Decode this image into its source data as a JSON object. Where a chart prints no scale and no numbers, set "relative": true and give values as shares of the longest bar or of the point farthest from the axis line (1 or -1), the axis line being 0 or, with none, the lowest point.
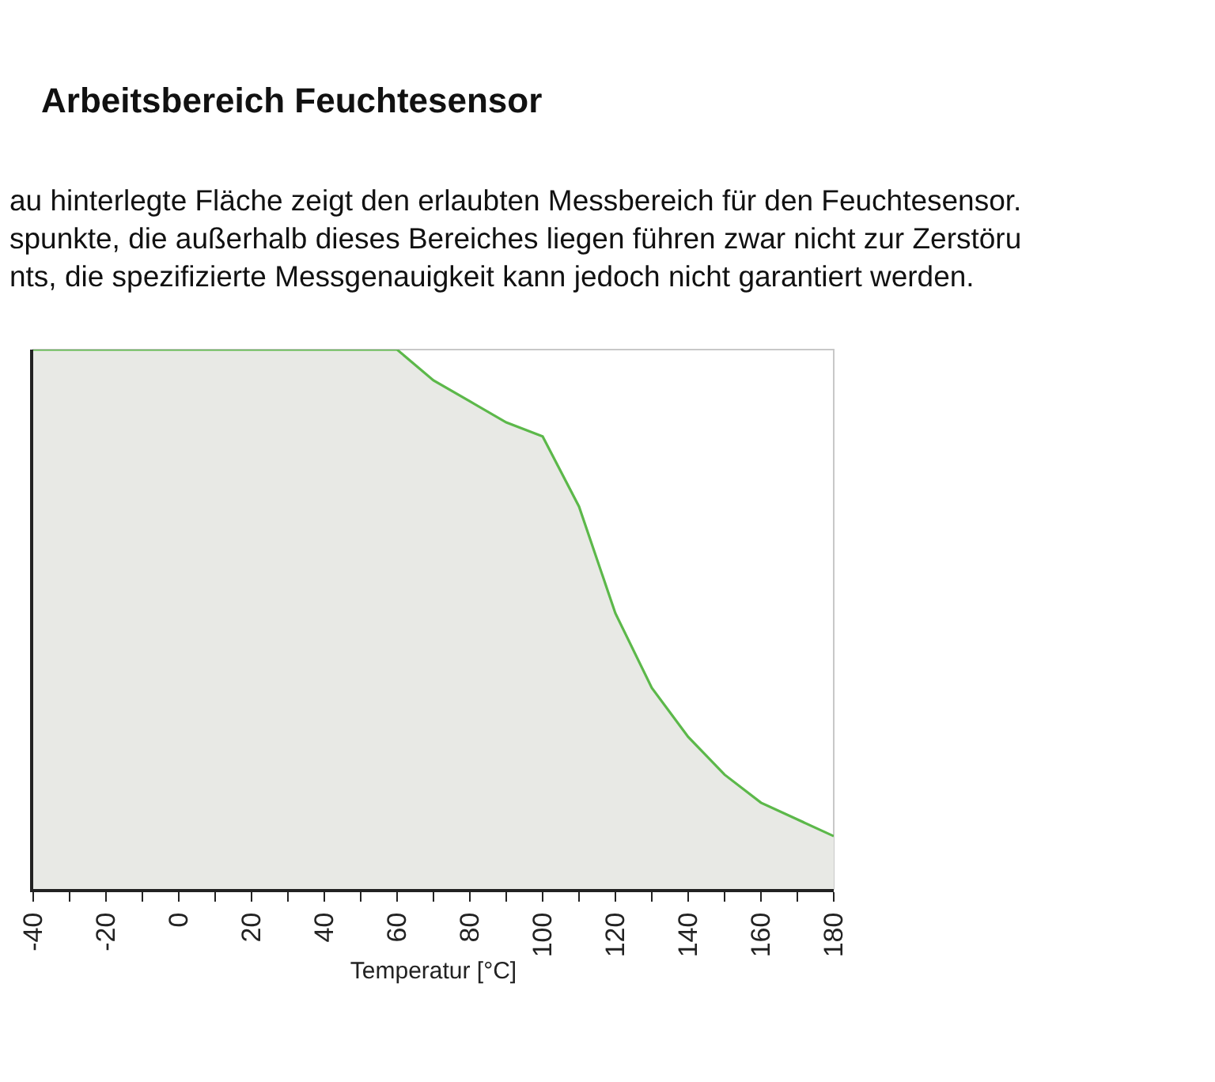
{
  "chart_data": {
    "type": "area",
    "title": "Arbeitsbereich Feuchtesensor",
    "subtitle": "au hinterlegte Fläche zeigt den erlaubten Messbereich für den Feuchtesensor.\nspunkte, die außerhalb dieses Bereiches liegen führen zwar nicht zur Zerstöru\nnts, die spezifizierte Messgenauigkeit kann jedoch nicht garantiert werden.",
    "xlabel": "Temperatur [°C]",
    "relative": true,
    "x": [
      -40,
      60,
      70,
      80,
      90,
      100,
      110,
      120,
      130,
      140,
      150,
      160,
      170,
      180
    ],
    "series": [
      {
        "color": "#5cb84a",
        "values": [
          1,
          1,
          0.943,
          0.904,
          0.865,
          0.839,
          0.709,
          0.511,
          0.373,
          0.282,
          0.212,
          0.16,
          0.129,
          0.098
        ]
      }
    ],
    "xlim": [
      -40,
      180
    ],
    "xticks": [
      -40,
      {
        "value": -30,
        "label": null
      },
      -20,
      {
        "value": -10,
        "label": null
      },
      0,
      {
        "value": 10,
        "label": null
      },
      20,
      {
        "value": 30,
        "label": null
      },
      40,
      {
        "value": 50,
        "label": null
      },
      60,
      {
        "value": 70,
        "label": null
      },
      80,
      {
        "value": 90,
        "label": null
      },
      100,
      {
        "value": 110,
        "label": null
      },
      120,
      {
        "value": 130,
        "label": null
      },
      140,
      {
        "value": 150,
        "label": null
      },
      160,
      {
        "value": 170,
        "label": null
      },
      180
    ],
    "grid": false,
    "marker": "none",
    "line_style": "solid"
  }
}
